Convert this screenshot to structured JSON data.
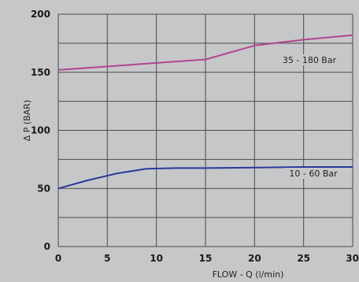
{
  "chart_data": {
    "type": "line",
    "xlabel": "FLOW - Q (l/min)",
    "ylabel": "Δ P (BAR)",
    "xlim": [
      0,
      30
    ],
    "ylim": [
      0,
      200
    ],
    "x_ticks": [
      "0",
      "5",
      "10",
      "15",
      "20",
      "25",
      "30"
    ],
    "y_ticks": [
      "0",
      "50",
      "100",
      "150",
      "200"
    ],
    "grid": true,
    "colors": {
      "background": "#c6c7c9",
      "grid": "#4a4a4a",
      "series_1": "#b0468f",
      "series_2": "#2a3a9a"
    },
    "series": [
      {
        "name": "35 - 180 Bar",
        "x": [
          0,
          5,
          10,
          15,
          20,
          25,
          30
        ],
        "y": [
          152,
          155,
          158,
          161,
          173,
          178,
          182
        ]
      },
      {
        "name": "10 - 60 Bar",
        "x": [
          0,
          3,
          6,
          9,
          12,
          15,
          20,
          25,
          30
        ],
        "y": [
          50,
          57,
          63,
          67,
          67.5,
          67.5,
          68,
          68.5,
          68.5
        ]
      }
    ]
  }
}
